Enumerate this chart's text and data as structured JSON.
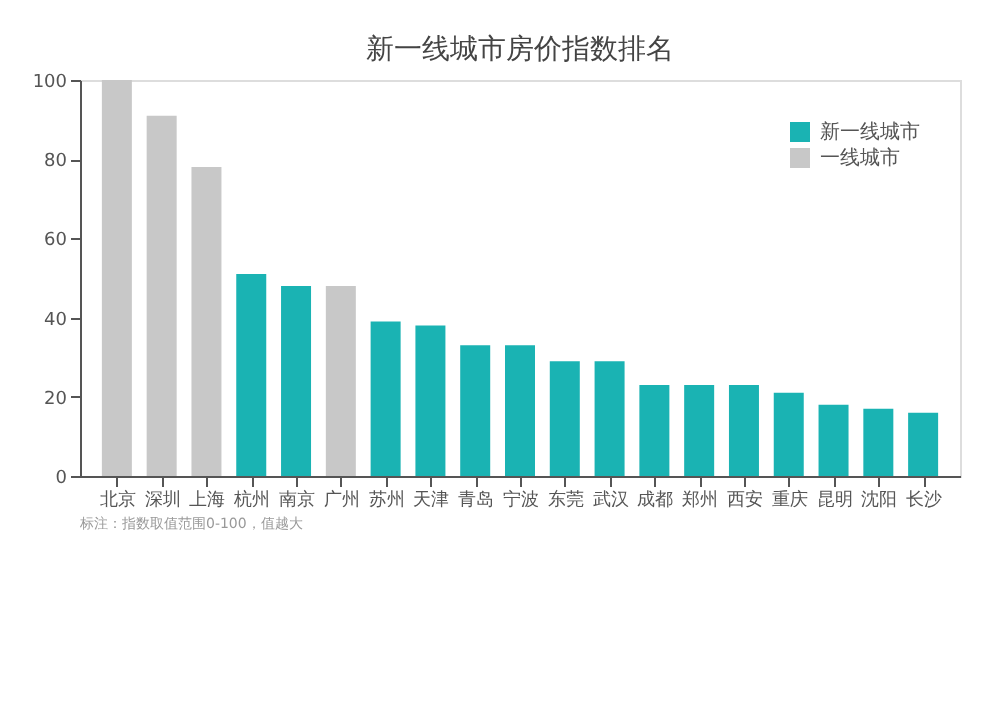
{
  "chart_data": {
    "type": "bar",
    "title": "新一线城市房价指数排名",
    "categories": [
      "北京",
      "深圳",
      "上海",
      "杭州",
      "南京",
      "广州",
      "苏州",
      "天津",
      "青岛",
      "宁波",
      "东莞",
      "武汉",
      "成都",
      "郑州",
      "西安",
      "重庆",
      "昆明",
      "沈阳",
      "长沙"
    ],
    "series": [
      {
        "name": "新一线城市",
        "color": "#1ab3b3",
        "values": [
          null,
          null,
          null,
          51,
          48,
          null,
          39,
          38,
          33,
          33,
          29,
          29,
          23,
          23,
          23,
          21,
          18,
          17,
          16
        ]
      },
      {
        "name": "一线城市",
        "color": "#c8c8c8",
        "values": [
          100,
          91,
          78,
          null,
          null,
          48,
          null,
          null,
          null,
          null,
          null,
          null,
          null,
          null,
          null,
          null,
          null,
          null,
          null
        ]
      }
    ],
    "ylim": [
      0,
      100
    ],
    "yticks": [
      0,
      20,
      40,
      60,
      80,
      100
    ],
    "grid": false,
    "legend": "top right",
    "annotations": [
      "标注：指数取值范围0-100，值越大"
    ]
  }
}
